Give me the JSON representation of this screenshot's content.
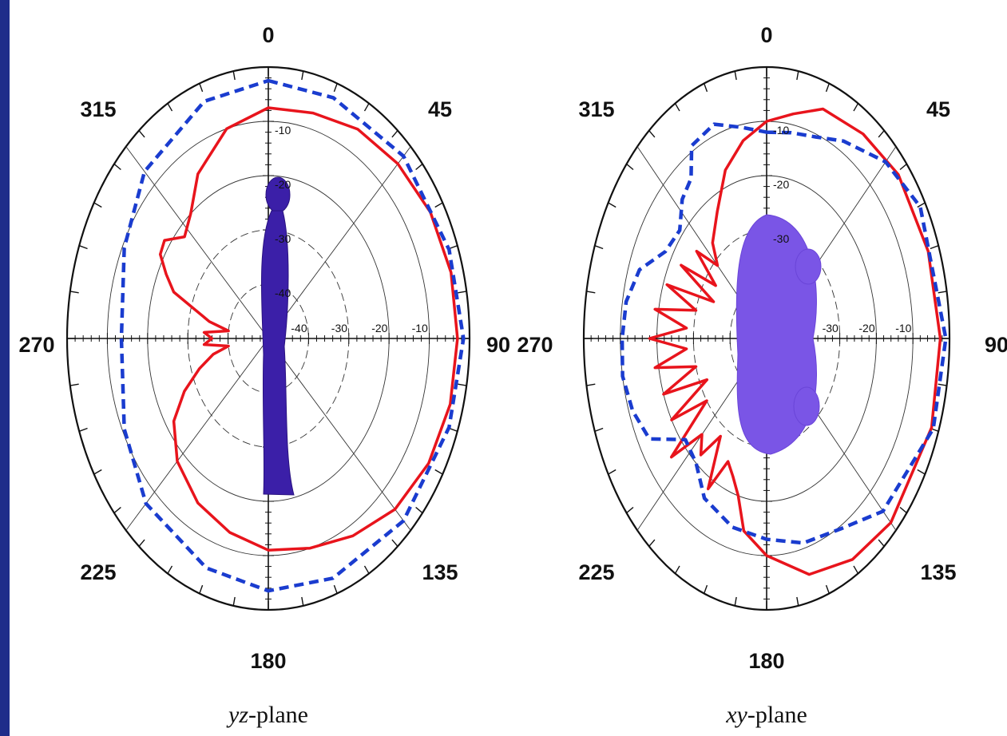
{
  "chart_data": [
    {
      "type": "polar",
      "caption": "yz-plane",
      "caption_italic": "yz",
      "caption_rest": "-plane",
      "angle_labels": [
        "0",
        "45",
        "90",
        "135",
        "180",
        "225",
        "270",
        "315"
      ],
      "radial_labels": [
        "-10",
        "-20",
        "-30",
        "-40"
      ],
      "rlim": [
        -50,
        0
      ],
      "grid": true,
      "figure": "standing-human-body",
      "series": [
        {
          "style": "solid",
          "color": "#e8141c",
          "points": [
            [
              0,
              -7.5
            ],
            [
              15,
              -7.0
            ],
            [
              30,
              -5.5
            ],
            [
              45,
              -4.5
            ],
            [
              60,
              -3.5
            ],
            [
              75,
              -3.0
            ],
            [
              90,
              -3.0
            ],
            [
              105,
              -3.2
            ],
            [
              120,
              -4.0
            ],
            [
              135,
              -5.5
            ],
            [
              150,
              -8.0
            ],
            [
              165,
              -10.0
            ],
            [
              180,
              -11.0
            ],
            [
              195,
              -13.0
            ],
            [
              210,
              -15.0
            ],
            [
              225,
              -18.0
            ],
            [
              237,
              -22.0
            ],
            [
              245,
              -27.0
            ],
            [
              252,
              -32.0
            ],
            [
              258,
              -36.0
            ],
            [
              262,
              -40.0
            ],
            [
              266,
              -34.0
            ],
            [
              270,
              -36.0
            ],
            [
              274,
              -34.0
            ],
            [
              278,
              -40.0
            ],
            [
              282,
              -35.0
            ],
            [
              290,
              -25.0
            ],
            [
              295,
              -22.0
            ],
            [
              300,
              -19.0
            ],
            [
              305,
              -18.5
            ],
            [
              312,
              -22.0
            ],
            [
              320,
              -20.0
            ],
            [
              330,
              -15.0
            ],
            [
              345,
              -10.0
            ],
            [
              360,
              -7.5
            ]
          ]
        },
        {
          "style": "dashed",
          "color": "#1a3ccf",
          "points": [
            [
              0,
              -2.5
            ],
            [
              20,
              -2.8
            ],
            [
              45,
              -2.5
            ],
            [
              70,
              -2.2
            ],
            [
              90,
              -1.5
            ],
            [
              110,
              -2.2
            ],
            [
              135,
              -2.5
            ],
            [
              160,
              -3.0
            ],
            [
              180,
              -3.5
            ],
            [
              200,
              -5.0
            ],
            [
              225,
              -7.0
            ],
            [
              245,
              -10.5
            ],
            [
              270,
              -13.5
            ],
            [
              295,
              -10.5
            ],
            [
              315,
              -6.5
            ],
            [
              340,
              -3.5
            ],
            [
              360,
              -2.5
            ]
          ]
        }
      ]
    },
    {
      "type": "polar",
      "caption": "xy-plane",
      "caption_italic": "xy",
      "caption_rest": "-plane",
      "angle_labels": [
        "0",
        "45",
        "90",
        "135",
        "180",
        "225",
        "270",
        "315"
      ],
      "radial_labels": [
        "-10",
        "-20",
        "-30"
      ],
      "rlim": [
        -50,
        0
      ],
      "grid": true,
      "figure": "human-body-top-view",
      "series": [
        {
          "style": "solid",
          "color": "#e8141c",
          "points": [
            [
              0,
              -10.0
            ],
            [
              10,
              -8.0
            ],
            [
              20,
              -5.0
            ],
            [
              35,
              -4.0
            ],
            [
              50,
              -3.0
            ],
            [
              70,
              -3.0
            ],
            [
              90,
              -2.5
            ],
            [
              110,
              -2.0
            ],
            [
              135,
              -2.0
            ],
            [
              150,
              -3.0
            ],
            [
              165,
              -5.0
            ],
            [
              180,
              -10.0
            ],
            [
              190,
              -14.0
            ],
            [
              195,
              -20.0
            ],
            [
              200,
              -23.0
            ],
            [
              205,
              -25.0
            ],
            [
              210,
              -18.0
            ],
            [
              215,
              -28.0
            ],
            [
              220,
              -22.0
            ],
            [
              225,
              -25.0
            ],
            [
              230,
              -16.0
            ],
            [
              235,
              -30.0
            ],
            [
              240,
              -20.0
            ],
            [
              245,
              -32.0
            ],
            [
              250,
              -20.0
            ],
            [
              255,
              -30.0
            ],
            [
              260,
              -19.0
            ],
            [
              265,
              -28.0
            ],
            [
              270,
              -18.0
            ],
            [
              275,
              -28.0
            ],
            [
              280,
              -19.0
            ],
            [
              285,
              -30.0
            ],
            [
              290,
              -21.0
            ],
            [
              295,
              -34.0
            ],
            [
              300,
              -23.0
            ],
            [
              305,
              -33.0
            ],
            [
              310,
              -25.0
            ],
            [
              315,
              -31.0
            ],
            [
              320,
              -27.0
            ],
            [
              330,
              -23.0
            ],
            [
              340,
              -17.0
            ],
            [
              350,
              -13.0
            ],
            [
              360,
              -10.0
            ]
          ]
        },
        {
          "style": "dashed",
          "color": "#1a3ccf",
          "points": [
            [
              0,
              -12.0
            ],
            [
              10,
              -11.5
            ],
            [
              20,
              -10.5
            ],
            [
              30,
              -8.0
            ],
            [
              45,
              -4.0
            ],
            [
              60,
              -1.5
            ],
            [
              90,
              -1.0
            ],
            [
              110,
              -1.5
            ],
            [
              135,
              -5.0
            ],
            [
              150,
              -9.5
            ],
            [
              165,
              -11.0
            ],
            [
              180,
              -13.0
            ],
            [
              195,
              -14.0
            ],
            [
              210,
              -16.0
            ],
            [
              220,
              -20.0
            ],
            [
              230,
              -21.0
            ],
            [
              240,
              -13.0
            ],
            [
              250,
              -11.0
            ],
            [
              260,
              -10.0
            ],
            [
              270,
              -10.5
            ],
            [
              280,
              -11.0
            ],
            [
              290,
              -13.0
            ],
            [
              300,
              -18.0
            ],
            [
              310,
              -19.0
            ],
            [
              318,
              -15.5
            ],
            [
              325,
              -14.0
            ],
            [
              330,
              -9.0
            ],
            [
              340,
              -8.0
            ],
            [
              350,
              -10.5
            ],
            [
              360,
              -12.0
            ]
          ]
        }
      ]
    }
  ]
}
